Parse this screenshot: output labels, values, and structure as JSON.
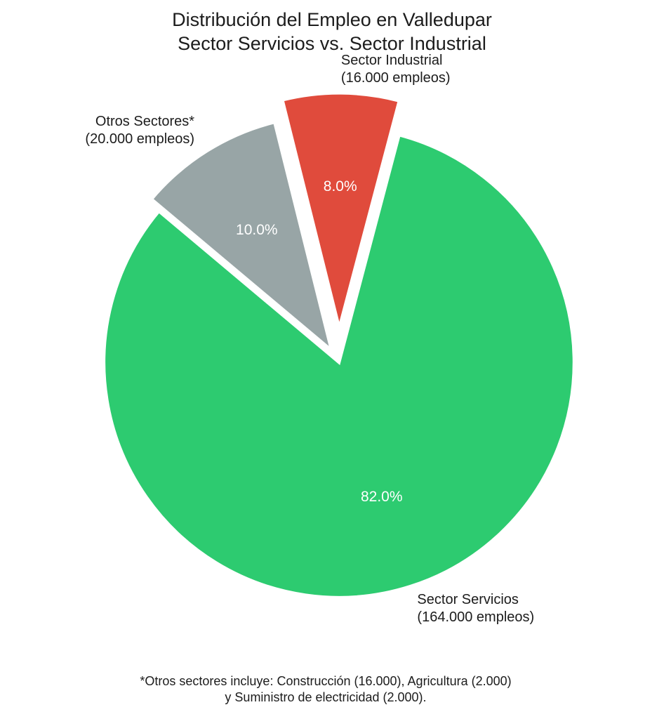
{
  "title": {
    "line1": "Distribución del Empleo en Valledupar",
    "line2": "Sector Servicios vs. Sector Industrial"
  },
  "footnote": {
    "line1": "*Otros sectores incluye: Construcción (16.000), Agricultura (2.000)",
    "line2": "y Suministro de electricidad (2.000)."
  },
  "chart_data": {
    "type": "pie",
    "title": "Distribución del Empleo en Valledupar — Sector Servicios vs. Sector Industrial",
    "slices": [
      {
        "label": "Sector Servicios",
        "sublabel": "(164.000 empleos)",
        "employees": 164000,
        "pct": 82.0,
        "pct_label": "82.0%",
        "color": "#2DCB70",
        "explode": 0.0
      },
      {
        "label": "Sector Industrial",
        "sublabel": "(16.000 empleos)",
        "employees": 16000,
        "pct": 8.0,
        "pct_label": "8.0%",
        "color": "#E04B3C",
        "explode": 0.145
      },
      {
        "label": "Otros Sectores*",
        "sublabel": "(20.000 empleos)",
        "employees": 20000,
        "pct": 10.0,
        "pct_label": "10.0%",
        "color": "#98A5A6",
        "explode": 0.06
      }
    ],
    "layout": {
      "start_angle_deg": 140,
      "direction": "counterclockwise",
      "label_distance": 1.1,
      "pct_distance": 0.6,
      "wedge_edge_color": "#ffffff"
    },
    "footnote": "*Otros sectores incluye: Construcción (16.000), Agricultura (2.000) y Suministro de electricidad (2.000)."
  }
}
